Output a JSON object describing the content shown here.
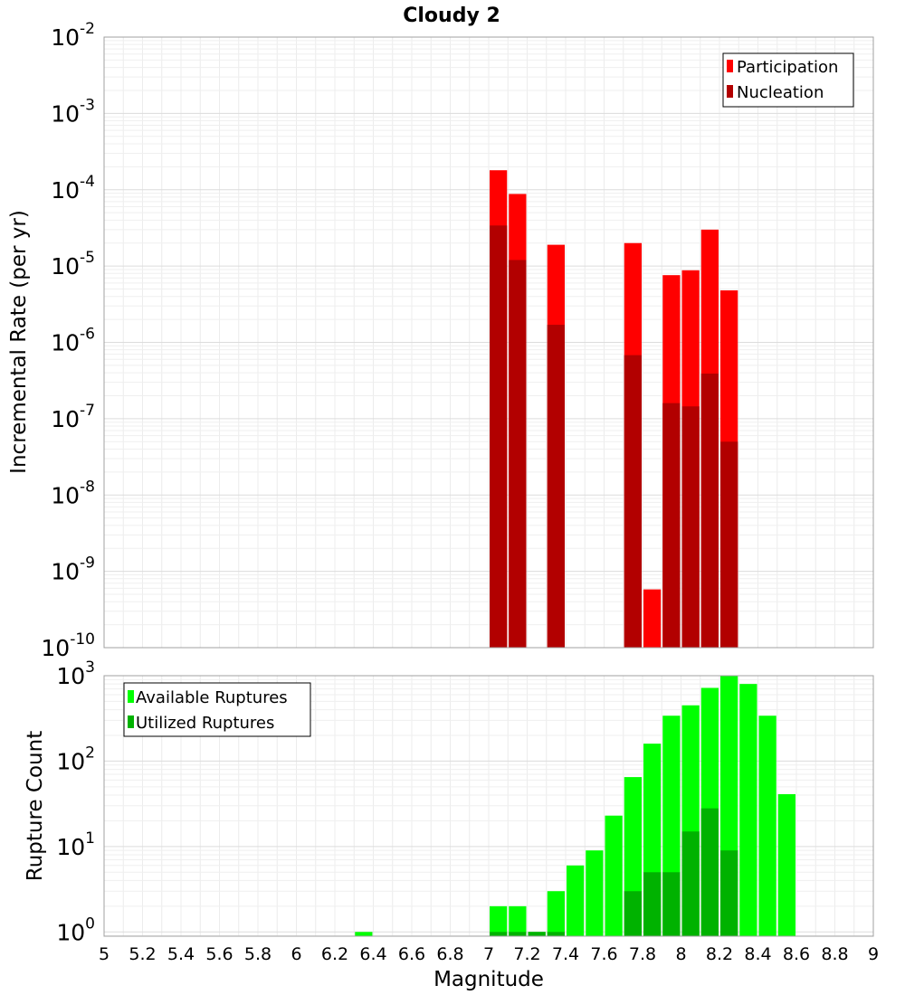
{
  "chart_data": [
    {
      "type": "bar",
      "title": "Cloudy 2",
      "ylabel": "Incremental Rate (per yr)",
      "xlabel": "",
      "y_scale": "log",
      "ylim_exp": [
        -10,
        -2
      ],
      "y_tick_exponents": [
        -10,
        -9,
        -8,
        -7,
        -6,
        -5,
        -4,
        -3,
        -2
      ],
      "xlim": [
        5,
        9
      ],
      "bin_width": 0.1,
      "legend_position": "top-right",
      "grid": true,
      "series": [
        {
          "name": "Participation",
          "color": "#ff0000",
          "x": [
            7.05,
            7.15,
            7.35,
            7.75,
            7.85,
            7.95,
            8.05,
            8.15,
            8.25
          ],
          "values": [
            0.00018,
            8.8e-05,
            1.9e-05,
            2e-05,
            5.8e-10,
            7.6e-06,
            8.8e-06,
            3e-05,
            4.8e-06
          ]
        },
        {
          "name": "Nucleation",
          "color": "#b20000",
          "x": [
            7.05,
            7.15,
            7.35,
            7.75,
            7.95,
            8.05,
            8.15,
            8.25
          ],
          "values": [
            3.4e-05,
            1.2e-05,
            1.7e-06,
            6.8e-07,
            1.6e-07,
            1.45e-07,
            3.9e-07,
            5e-08
          ]
        }
      ]
    },
    {
      "type": "bar",
      "title": "",
      "ylabel": "Rupture Count",
      "xlabel": "Magnitude",
      "y_scale": "log",
      "ylim_exp": [
        -0.05,
        3
      ],
      "y_tick_exponents": [
        0,
        1,
        2,
        3
      ],
      "xlim": [
        5,
        9
      ],
      "bin_width": 0.1,
      "x_tick_labels": [
        "5",
        "5.2",
        "5.4",
        "5.6",
        "5.8",
        "6",
        "6.2",
        "6.4",
        "6.6",
        "6.8",
        "7",
        "7.2",
        "7.4",
        "7.6",
        "7.8",
        "8",
        "8.2",
        "8.4",
        "8.6",
        "8.8",
        "9"
      ],
      "legend_position": "top-left",
      "grid": true,
      "series": [
        {
          "name": "Available Ruptures",
          "color": "#00ff00",
          "x": [
            6.35,
            7.05,
            7.15,
            7.25,
            7.35,
            7.45,
            7.55,
            7.65,
            7.75,
            7.85,
            7.95,
            8.05,
            8.15,
            8.25,
            8.35,
            8.45,
            8.55
          ],
          "values": [
            1,
            2,
            2,
            1,
            3,
            6,
            9,
            23,
            65,
            160,
            340,
            450,
            720,
            1000,
            800,
            340,
            41
          ]
        },
        {
          "name": "Utilized Ruptures",
          "color": "#00b200",
          "x": [
            7.05,
            7.15,
            7.25,
            7.35,
            7.75,
            7.85,
            7.95,
            8.05,
            8.15,
            8.25
          ],
          "values": [
            1,
            1,
            1,
            1,
            3,
            5,
            5,
            15,
            28,
            9
          ]
        }
      ]
    }
  ]
}
